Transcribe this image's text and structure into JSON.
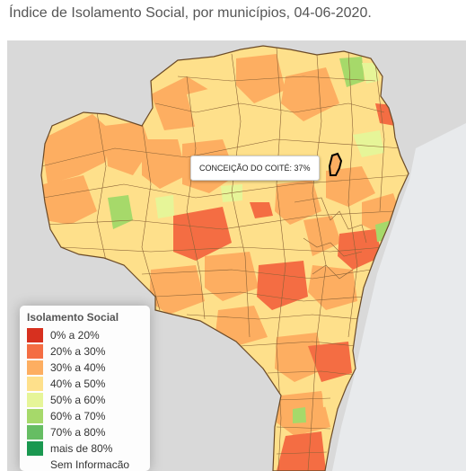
{
  "page": {
    "title": "Índice de Isolamento Social, por municípios, 04-06-2020."
  },
  "map": {
    "region": "Bahia",
    "land_color": "#dcdcdc",
    "border_color": "#8a6236",
    "highlight_border_color": "#000000",
    "tooltip": "CONCEIÇÃO DO COITÉ: 37%"
  },
  "legend": {
    "title": "Isolamento Social",
    "items": [
      {
        "label": "0% a 20%",
        "color": "#d7301f"
      },
      {
        "label": "20% a 30%",
        "color": "#f46d43"
      },
      {
        "label": "30% a 40%",
        "color": "#fdae61"
      },
      {
        "label": "40% a 50%",
        "color": "#fee08b"
      },
      {
        "label": "50% a 60%",
        "color": "#e6f598"
      },
      {
        "label": "60% a 70%",
        "color": "#a6d96a"
      },
      {
        "label": "70% a 80%",
        "color": "#66bd63"
      },
      {
        "label": "mais de 80%",
        "color": "#1a9850"
      },
      {
        "label": "Sem Informacão",
        "color": ""
      }
    ]
  }
}
